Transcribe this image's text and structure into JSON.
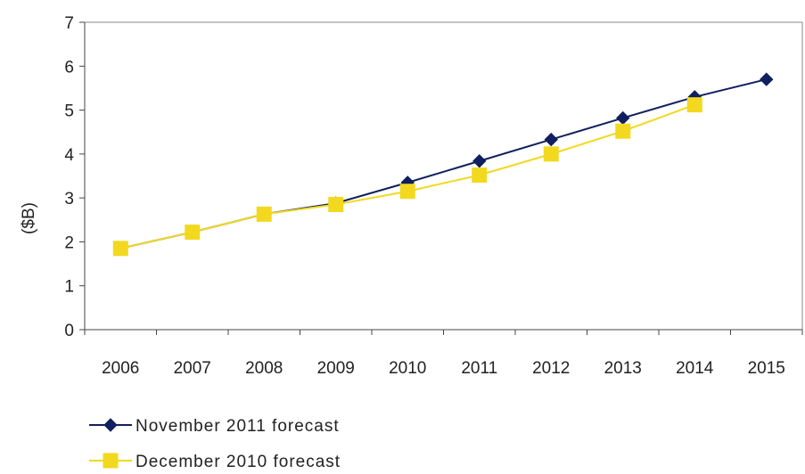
{
  "chart_data": {
    "type": "line",
    "categories": [
      "2006",
      "2007",
      "2008",
      "2009",
      "2010",
      "2011",
      "2012",
      "2013",
      "2014",
      "2015"
    ],
    "ylabel": "($B)",
    "xlabel": "",
    "ylim": [
      0,
      7
    ],
    "yticks": [
      "0",
      "1",
      "2",
      "3",
      "4",
      "5",
      "6",
      "7"
    ],
    "grid": false,
    "legend_position": "bottom-left",
    "series": [
      {
        "name": "November 2011 forecast",
        "color": "#10205e",
        "marker": "diamond",
        "values": [
          1.85,
          2.22,
          2.63,
          2.88,
          3.35,
          3.84,
          4.33,
          4.82,
          5.3,
          5.7
        ]
      },
      {
        "name": "December 2010 forecast",
        "color": "#f2d91f",
        "marker": "square",
        "values": [
          1.85,
          2.22,
          2.63,
          2.85,
          3.15,
          3.52,
          4.0,
          4.52,
          5.12,
          null
        ]
      }
    ]
  }
}
